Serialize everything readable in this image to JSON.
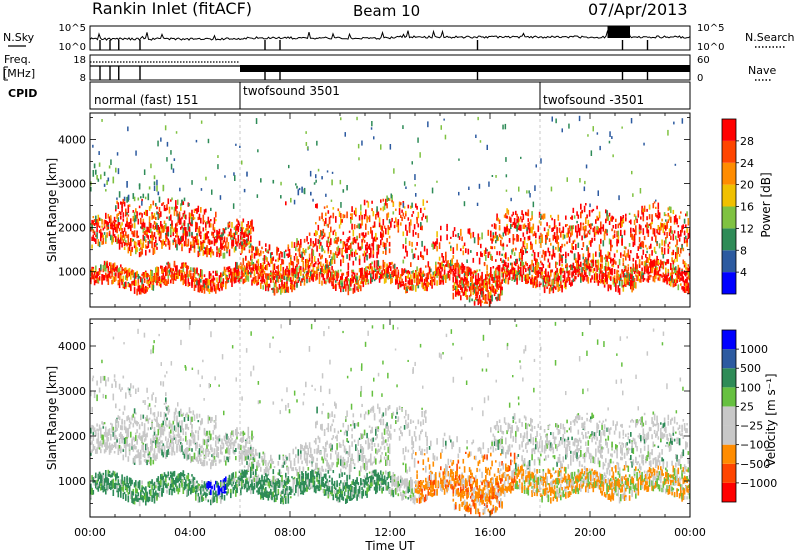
{
  "header": {
    "station": "Rankin Inlet (fitACF)",
    "beam": "Beam 10",
    "date": "07/Apr/2013"
  },
  "left_labels": {
    "nsky": "N.Sky",
    "freq_line1": "Freq.",
    "freq_line2": "[MHz]",
    "cpid": "CPID"
  },
  "right_labels": {
    "nsearch": "N.Search",
    "nave": "Nave"
  },
  "colors": {
    "power": [
      "#0000ff",
      "#2c5aa0",
      "#2e8b57",
      "#7fc241",
      "#f0c000",
      "#ff8c00",
      "#ff4500",
      "#ff0000"
    ],
    "velocity": [
      "#ff0000",
      "#ff4500",
      "#ff8c00",
      "#c8c8c8",
      "#c8c8c8",
      "#66c040",
      "#2e8b57",
      "#2c5aa0",
      "#0000ff"
    ]
  },
  "chart_data": [
    {
      "type": "line",
      "name": "noise-panel",
      "left_ticks": [
        "10^5",
        "10^0"
      ],
      "right_ticks": [
        "10^5",
        "10^0"
      ]
    },
    {
      "type": "line",
      "name": "freq-nave-panel",
      "left_ticks": [
        "18",
        "8"
      ],
      "right_ticks": [
        "60",
        "0"
      ]
    },
    {
      "type": "table",
      "name": "cpid-panel",
      "segments": [
        {
          "label": "normal (fast) 151",
          "start": "00:00"
        },
        {
          "label": "twofsound 3501",
          "start": "06:00"
        },
        {
          "label": "twofsound -3501",
          "start": "18:00"
        }
      ]
    },
    {
      "type": "heatmap",
      "name": "power-panel",
      "ylabel": "Slant Range [km]",
      "yticks": [
        1000,
        2000,
        3000,
        4000
      ],
      "ylim": [
        200,
        4600
      ],
      "xlim": [
        0,
        24
      ],
      "colorbar_label": "Power [dB]",
      "colorbar_ticks": [
        4,
        8,
        12,
        16,
        20,
        24,
        28
      ]
    },
    {
      "type": "heatmap",
      "name": "velocity-panel",
      "ylabel": "Slant Range [km]",
      "yticks": [
        1000,
        2000,
        3000,
        4000
      ],
      "ylim": [
        200,
        4600
      ],
      "xlim": [
        0,
        24
      ],
      "colorbar_label": "Velocity [m s⁻¹]",
      "colorbar_ticks": [
        "1000",
        "500",
        "100",
        "25",
        "−25",
        "−100",
        "−500",
        "−1000"
      ]
    }
  ],
  "xaxis": {
    "ticks": [
      "00:00",
      "04:00",
      "08:00",
      "12:00",
      "16:00",
      "20:00",
      "00:00"
    ],
    "label": "Time UT"
  }
}
